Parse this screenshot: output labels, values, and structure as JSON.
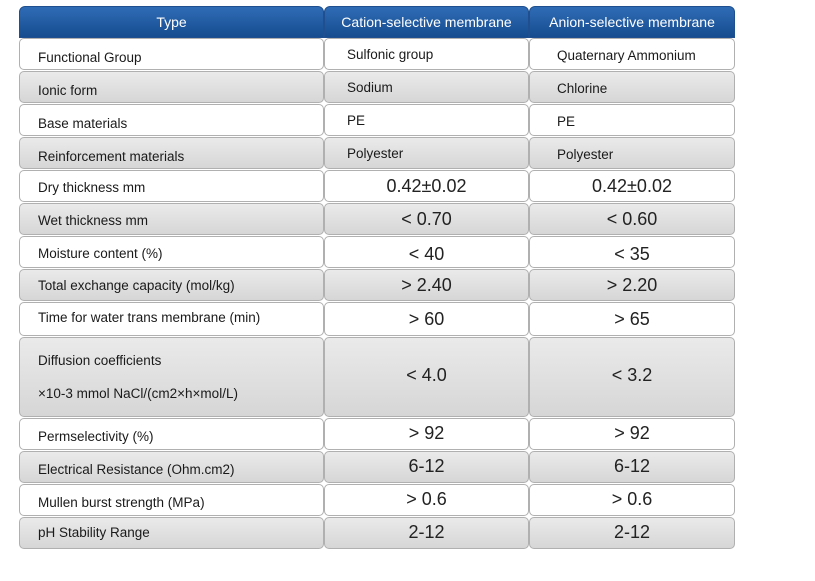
{
  "header": {
    "type": "Type",
    "cation": "Cation-selective membrane",
    "anion": "Anion-selective membrane"
  },
  "rows": [
    {
      "label": "Functional Group",
      "cation": "Sulfonic group",
      "anion": "Quaternary Ammonium"
    },
    {
      "label": "Ionic form",
      "cation": "Sodium",
      "anion": "Chlorine"
    },
    {
      "label": "Base materials",
      "cation": "PE",
      "anion": "PE"
    },
    {
      "label": "Reinforcement materials",
      "cation": "Polyester",
      "anion": "Polyester"
    },
    {
      "label": "Dry thickness mm",
      "cation": "0.42±0.02",
      "anion": "0.42±0.02"
    },
    {
      "label": "Wet thickness mm",
      "cation": "< 0.70",
      "anion": "< 0.60"
    },
    {
      "label": "Moisture content (%)",
      "cation": "< 40",
      "anion": "< 35"
    },
    {
      "label": "Total exchange capacity (mol/kg)",
      "cation": "> 2.40",
      "anion": "> 2.20"
    },
    {
      "label": "Time for water trans membrane (min)",
      "cation": "> 60",
      "anion": "> 65"
    },
    {
      "label": "Diffusion coefficients",
      "label2": "×10-3 mmol NaCl/(cm2×h×mol/L)",
      "cation": "< 4.0",
      "anion": "< 3.2"
    },
    {
      "label": "Permselectivity (%)",
      "cation": "> 92",
      "anion": "> 92"
    },
    {
      "label": "Electrical Resistance (Ohm.cm2)",
      "cation": "6-12",
      "anion": "6-12"
    },
    {
      "label": "Mullen burst strength (MPa)",
      "cation": "> 0.6",
      "anion": "> 0.6"
    },
    {
      "label": "pH Stability Range",
      "cation": "2-12",
      "anion": "2-12"
    }
  ]
}
